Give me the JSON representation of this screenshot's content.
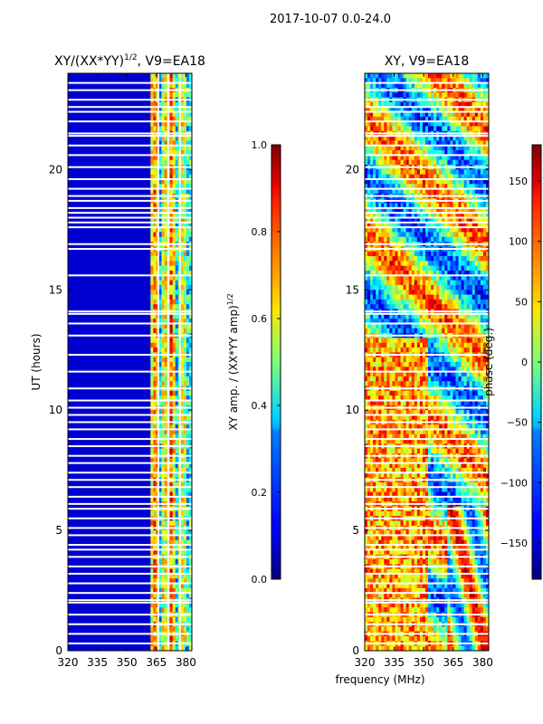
{
  "figure": {
    "suptitle": "2017-10-07 0.0-24.0",
    "shared_xlabel": "frequency (MHz)"
  },
  "chart_data": [
    {
      "type": "heatmap",
      "title": "XY/(XX*YY)^{1/2}, V9=EA18",
      "title_main": "XY/(XX*YY)",
      "title_sup": "1/2",
      "title_tail": ", V9=EA18",
      "xlabel": "",
      "ylabel": "UT (hours)",
      "xlim": [
        320,
        383
      ],
      "ylim": [
        0,
        24
      ],
      "xticks": [
        320,
        335,
        350,
        365,
        380
      ],
      "yticks": [
        0,
        5,
        10,
        15,
        20
      ],
      "colorbar": {
        "label": "XY amp. / (XX*YY amp)^{1/2}",
        "label_main": "XY amp. / (XX*YY amp)",
        "label_sup": "1/2",
        "min": 0.0,
        "max": 1.0,
        "ticks": [
          0.0,
          0.2,
          0.4,
          0.6,
          0.8,
          1.0
        ],
        "tick_labels": [
          "0.0",
          "0.2",
          "0.4",
          "0.6",
          "0.8",
          "1.0"
        ],
        "colormap": "jet"
      },
      "description_values": {
        "low_band_value": 0.08,
        "high_band_start_mhz": 362,
        "high_band_values_range": [
          0.3,
          0.8
        ]
      }
    },
    {
      "type": "heatmap",
      "title": "XY, V9=EA18",
      "xlabel": "frequency (MHz)",
      "ylabel": "",
      "xlim": [
        320,
        383
      ],
      "ylim": [
        0,
        24
      ],
      "xticks": [
        320,
        335,
        350,
        365,
        380
      ],
      "yticks": [
        0,
        5,
        10,
        15,
        20
      ],
      "colorbar": {
        "label": "phase (deg.)",
        "min": -180,
        "max": 180,
        "ticks": [
          -150,
          -100,
          -50,
          0,
          50,
          100,
          150
        ],
        "tick_labels": [
          "−150",
          "−100",
          "−50",
          "0",
          "50",
          "100",
          "150"
        ],
        "colormap": "jet"
      }
    }
  ],
  "flagged_rows_ut_hours": [
    0.3,
    0.7,
    1.1,
    1.5,
    2.0,
    2.1,
    2.4,
    2.8,
    3.2,
    3.5,
    3.9,
    4.2,
    4.4,
    4.8,
    5.1,
    5.5,
    5.9,
    6.1,
    6.4,
    6.8,
    7.1,
    7.4,
    7.8,
    8.1,
    8.5,
    8.8,
    9.2,
    9.5,
    9.8,
    10.1,
    10.4,
    10.9,
    11.6,
    12.3,
    13.1,
    13.6,
    14.0,
    14.1,
    15.6,
    16.7,
    16.9,
    17.6,
    17.8,
    18.0,
    18.2,
    18.4,
    18.7,
    18.9,
    19.2,
    19.6,
    20.1,
    20.6,
    21.0,
    21.4,
    21.5,
    22.0,
    22.4,
    22.6,
    22.9,
    23.3,
    23.6
  ]
}
